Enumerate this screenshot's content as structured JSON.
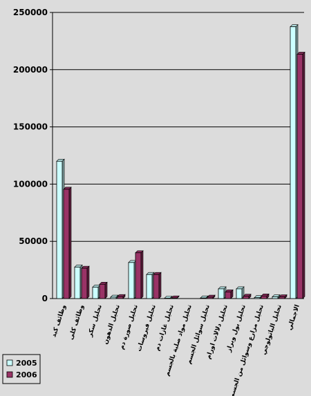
{
  "chart_data": {
    "type": "bar",
    "categories": [
      "وظائف كبد",
      "وظائف كلى",
      "تحليل سكر",
      "تحليل الدهون",
      "تحليل صورة دم",
      "تحليل فيروسات",
      "تحليل غازات دم",
      "تحليل مواد صلبة بالجسم",
      "تحليل سوائل الجسم",
      "تحليل دلالات اورام",
      "تحليل بول وبراز",
      "تحليل مزارع وسوائل من الجسم",
      "تحليل الباثولوجي",
      "الاجمالي"
    ],
    "series": [
      {
        "name": "2005",
        "color": "#ccffff",
        "values": [
          120000,
          27500,
          10000,
          1200,
          31500,
          21000,
          300,
          0,
          500,
          8500,
          8500,
          800,
          1500,
          237500
        ]
      },
      {
        "name": "2006",
        "color": "#993366",
        "values": [
          95500,
          26500,
          12500,
          1700,
          40000,
          21000,
          500,
          0,
          1200,
          5800,
          2000,
          2200,
          1500,
          213500
        ]
      }
    ],
    "ylim": [
      0,
      250000
    ],
    "yticks": [
      "0",
      "50000",
      "100000",
      "150000",
      "200000",
      "250000"
    ],
    "grid": true,
    "legend_position": "bottom-left"
  }
}
